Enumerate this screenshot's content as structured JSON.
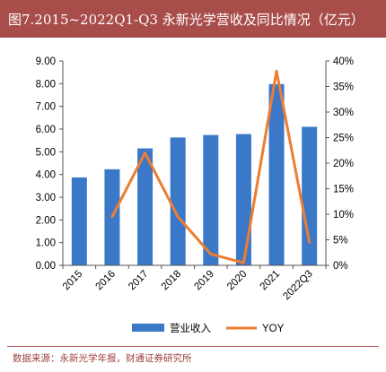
{
  "title": "图7.2015~2022Q1-Q3 永新光学营收及同比情况（亿元）",
  "source": "数据来源：永新光学年报，财通证券研究所",
  "colors": {
    "title_bg": "#a84d4a",
    "bar": "#3b78c8",
    "line": "#ed7d31",
    "source_text": "#9c3f3c"
  },
  "chart_data": {
    "type": "bar",
    "categories": [
      "2015",
      "2016",
      "2017",
      "2018",
      "2019",
      "2020",
      "2021",
      "2022Q3"
    ],
    "series": [
      {
        "name": "营业收入",
        "type": "bar",
        "axis": "left",
        "values": [
          3.87,
          4.23,
          5.15,
          5.63,
          5.74,
          5.78,
          7.98,
          6.1
        ]
      },
      {
        "name": "YOY",
        "type": "line",
        "axis": "right",
        "values": [
          null,
          0.095,
          0.22,
          0.095,
          0.022,
          0.005,
          0.38,
          0.045
        ]
      }
    ],
    "y_left": {
      "lim": [
        0,
        9
      ],
      "ticks": [
        "0.00",
        "1.00",
        "2.00",
        "3.00",
        "4.00",
        "5.00",
        "6.00",
        "7.00",
        "8.00",
        "9.00"
      ]
    },
    "y_right": {
      "lim": [
        0,
        0.4
      ],
      "ticks": [
        "0%",
        "5%",
        "10%",
        "15%",
        "20%",
        "25%",
        "30%",
        "35%",
        "40%"
      ]
    },
    "grid": false,
    "legend_position": "bottom"
  }
}
